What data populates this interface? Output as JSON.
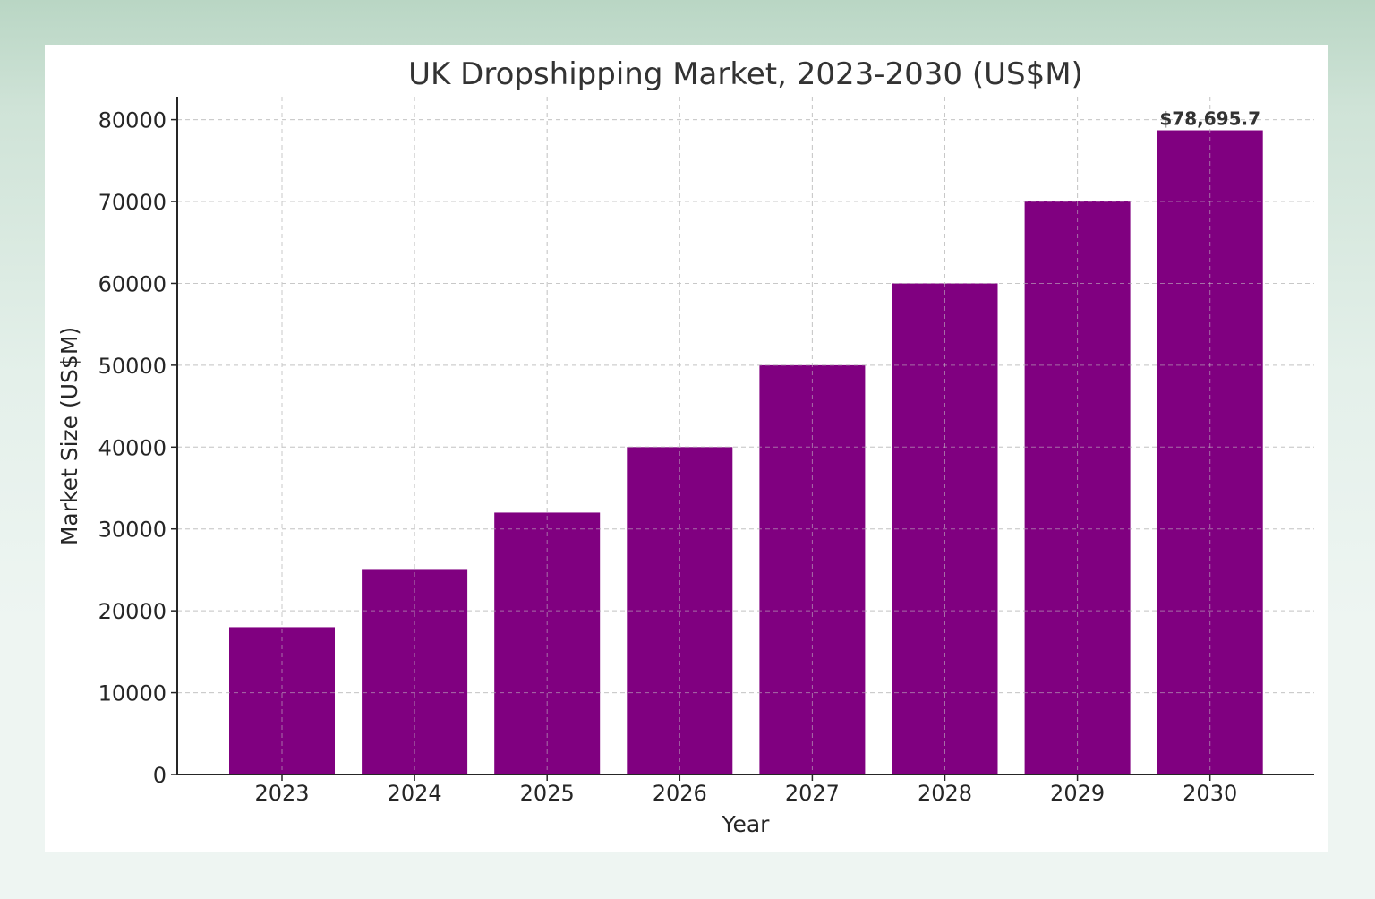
{
  "chart_data": {
    "type": "bar",
    "title": "UK Dropshipping Market, 2023-2030 (US$M)",
    "xlabel": "Year",
    "ylabel": "Market Size (US$M)",
    "categories": [
      "2023",
      "2024",
      "2025",
      "2026",
      "2027",
      "2028",
      "2029",
      "2030"
    ],
    "values": [
      18000,
      25000,
      32000,
      40000,
      50000,
      60000,
      70000,
      78695.7
    ],
    "ylim": [
      0,
      82800
    ],
    "yticks": [
      0,
      10000,
      20000,
      30000,
      40000,
      50000,
      60000,
      70000,
      80000
    ],
    "annotations": [
      {
        "category": "2030",
        "text": "$78,695.7"
      }
    ],
    "grid": true,
    "bar_color": "#800080"
  }
}
